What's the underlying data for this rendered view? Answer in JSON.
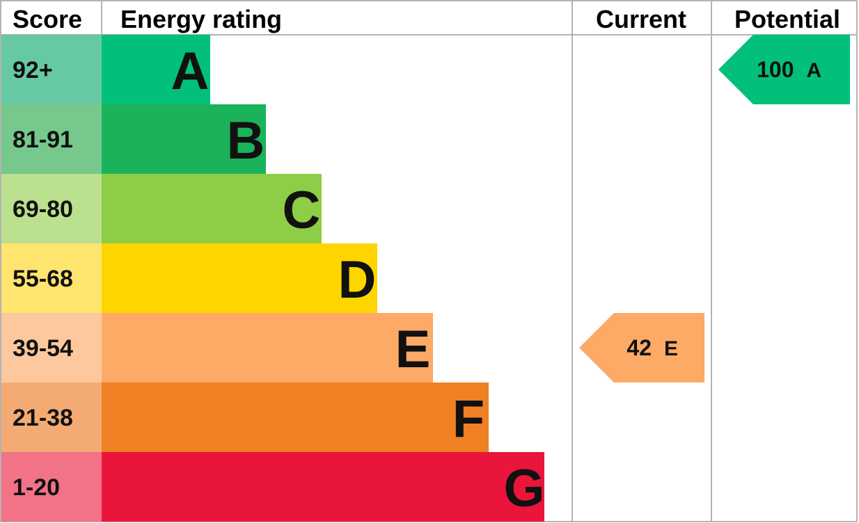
{
  "headers": {
    "score": "Score",
    "rating": "Energy rating",
    "current": "Current",
    "potential": "Potential"
  },
  "chart_data": {
    "type": "bar",
    "bands": [
      {
        "score": "92+",
        "letter": "A",
        "band_color": "#02c07a",
        "score_color": "#67c8a4"
      },
      {
        "score": "81-91",
        "letter": "B",
        "band_color": "#1bb35a",
        "score_color": "#76c88d"
      },
      {
        "score": "69-80",
        "letter": "C",
        "band_color": "#8dce46",
        "score_color": "#bbe08e"
      },
      {
        "score": "55-68",
        "letter": "D",
        "band_color": "#ffd500",
        "score_color": "#ffe56d"
      },
      {
        "score": "39-54",
        "letter": "E",
        "band_color": "#fcaa65",
        "score_color": "#fdc89d"
      },
      {
        "score": "21-38",
        "letter": "F",
        "band_color": "#ef8023",
        "score_color": "#f4ab73"
      },
      {
        "score": "1-20",
        "letter": "G",
        "band_color": "#e9153b",
        "score_color": "#f27287"
      }
    ],
    "current": {
      "value": "42",
      "letter": "E",
      "color": "#fcaa65"
    },
    "potential": {
      "value": "100",
      "letter": "A",
      "color": "#02c07a"
    }
  }
}
